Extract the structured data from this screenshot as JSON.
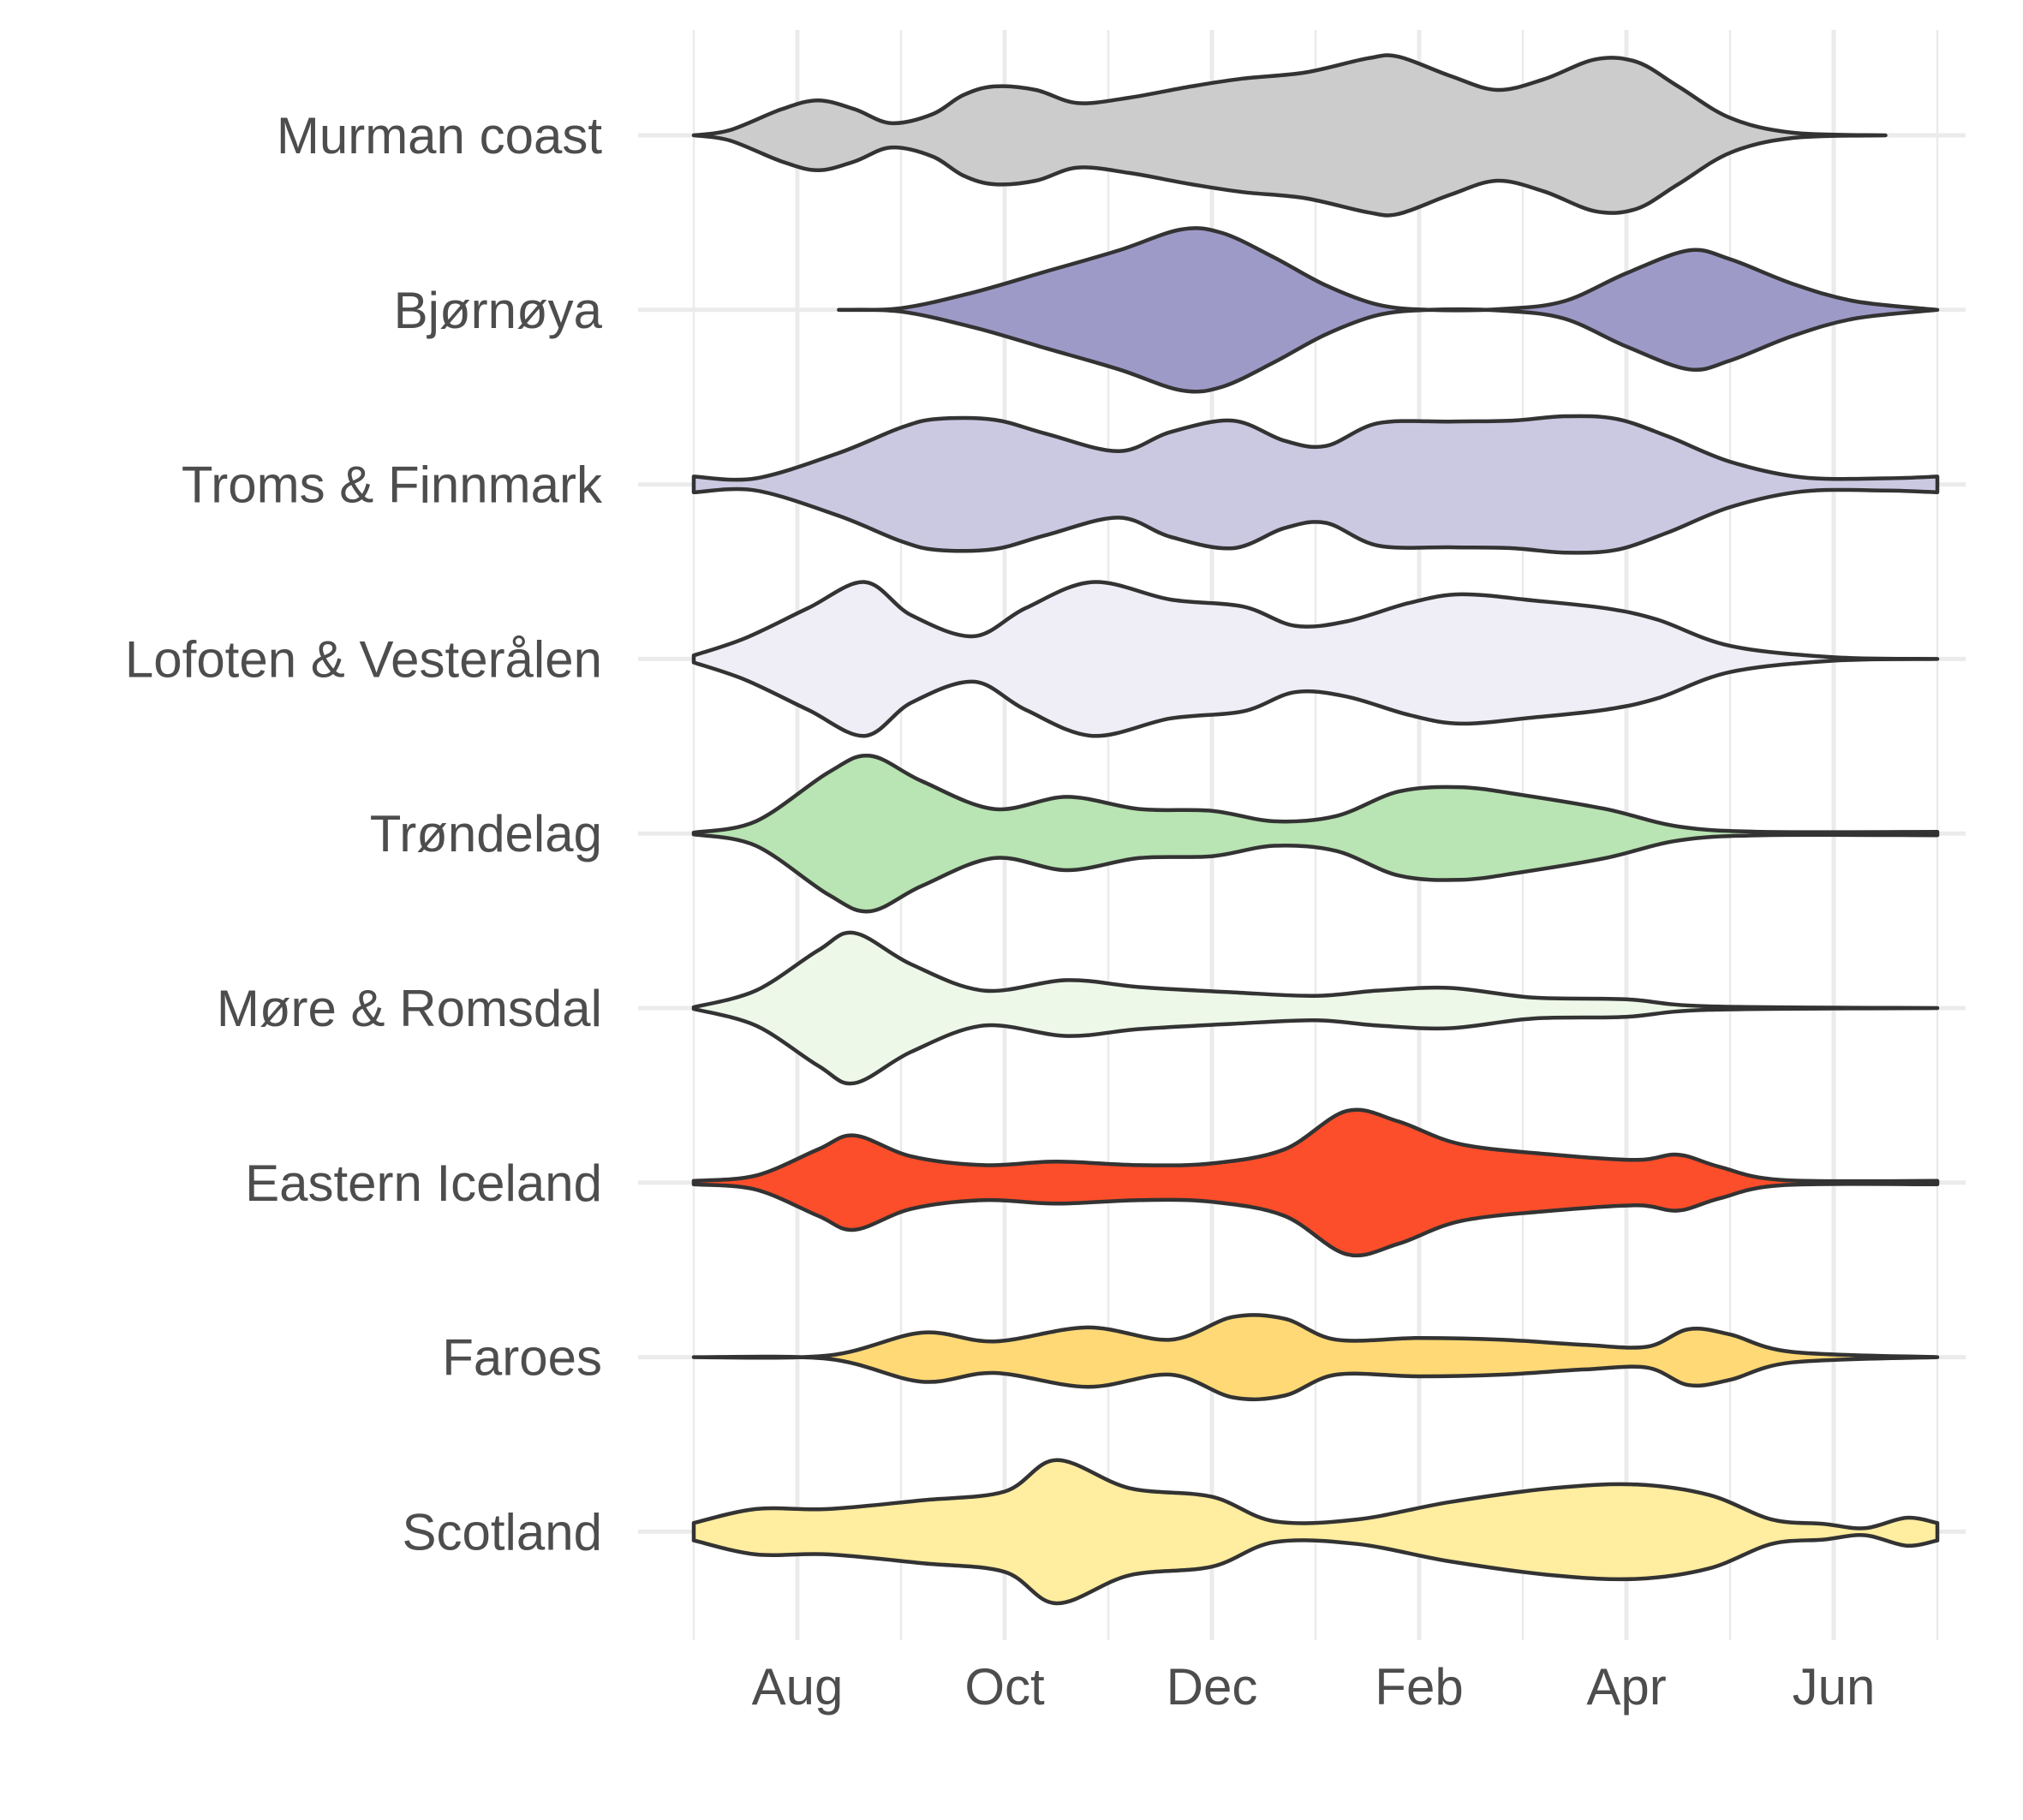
{
  "chart_data": {
    "type": "violin",
    "title": "",
    "xlabel": "",
    "ylabel": "",
    "x_ticks": [
      "Aug",
      "Oct",
      "Dec",
      "Feb",
      "Apr",
      "Jun"
    ],
    "x_tick_months": [
      1,
      3,
      5,
      7,
      9,
      11
    ],
    "x_range_months": [
      0,
      12
    ],
    "grid": true,
    "legend": "none",
    "series": [
      {
        "name": "Murman coast",
        "color": "#cccccc",
        "x_start": 0.0,
        "x_end": 11.5,
        "profile": [
          [
            0.0,
            0.0
          ],
          [
            0.35,
            0.06
          ],
          [
            0.85,
            0.3
          ],
          [
            1.2,
            0.4
          ],
          [
            1.55,
            0.3
          ],
          [
            1.9,
            0.14
          ],
          [
            2.3,
            0.24
          ],
          [
            2.6,
            0.46
          ],
          [
            2.9,
            0.56
          ],
          [
            3.3,
            0.52
          ],
          [
            3.7,
            0.37
          ],
          [
            4.2,
            0.43
          ],
          [
            4.8,
            0.56
          ],
          [
            5.3,
            0.65
          ],
          [
            5.9,
            0.72
          ],
          [
            6.5,
            0.88
          ],
          [
            6.8,
            0.9
          ],
          [
            7.3,
            0.68
          ],
          [
            7.75,
            0.52
          ],
          [
            8.2,
            0.64
          ],
          [
            8.7,
            0.87
          ],
          [
            9.1,
            0.84
          ],
          [
            9.5,
            0.56
          ],
          [
            10.0,
            0.2
          ],
          [
            10.6,
            0.03
          ],
          [
            11.5,
            0.0
          ]
        ]
      },
      {
        "name": "Bjørnøya",
        "color": "#9e9ac8",
        "x_start": 1.4,
        "x_end": 12.0,
        "profile": [
          [
            1.4,
            0.0
          ],
          [
            2.0,
            0.02
          ],
          [
            2.7,
            0.2
          ],
          [
            3.4,
            0.44
          ],
          [
            4.1,
            0.68
          ],
          [
            4.7,
            0.92
          ],
          [
            5.1,
            0.88
          ],
          [
            5.6,
            0.6
          ],
          [
            6.1,
            0.28
          ],
          [
            6.6,
            0.06
          ],
          [
            7.1,
            0.0
          ],
          [
            7.8,
            0.01
          ],
          [
            8.4,
            0.1
          ],
          [
            9.0,
            0.42
          ],
          [
            9.6,
            0.68
          ],
          [
            10.0,
            0.58
          ],
          [
            10.6,
            0.3
          ],
          [
            11.2,
            0.1
          ],
          [
            12.0,
            0.0
          ]
        ]
      },
      {
        "name": "Troms & Finnmark",
        "color": "#cbc9e2",
        "x_start": 0.0,
        "x_end": 12.0,
        "profile": [
          [
            0.0,
            0.09
          ],
          [
            0.6,
            0.07
          ],
          [
            1.4,
            0.36
          ],
          [
            2.0,
            0.65
          ],
          [
            2.35,
            0.75
          ],
          [
            2.9,
            0.74
          ],
          [
            3.4,
            0.58
          ],
          [
            4.1,
            0.38
          ],
          [
            4.6,
            0.6
          ],
          [
            5.2,
            0.73
          ],
          [
            5.7,
            0.5
          ],
          [
            6.1,
            0.44
          ],
          [
            6.6,
            0.7
          ],
          [
            7.3,
            0.72
          ],
          [
            7.9,
            0.73
          ],
          [
            8.4,
            0.78
          ],
          [
            8.9,
            0.75
          ],
          [
            9.4,
            0.55
          ],
          [
            10.0,
            0.26
          ],
          [
            10.7,
            0.08
          ],
          [
            11.5,
            0.07
          ],
          [
            12.0,
            0.09
          ]
        ]
      },
      {
        "name": "Lofoten & Vesterålen",
        "color": "#efedf5",
        "x_start": 0.0,
        "x_end": 12.0,
        "profile": [
          [
            0.0,
            0.04
          ],
          [
            0.5,
            0.24
          ],
          [
            1.1,
            0.58
          ],
          [
            1.65,
            0.88
          ],
          [
            2.1,
            0.5
          ],
          [
            2.7,
            0.26
          ],
          [
            3.2,
            0.58
          ],
          [
            3.85,
            0.88
          ],
          [
            4.6,
            0.68
          ],
          [
            5.3,
            0.6
          ],
          [
            5.8,
            0.38
          ],
          [
            6.3,
            0.43
          ],
          [
            6.9,
            0.64
          ],
          [
            7.4,
            0.74
          ],
          [
            8.1,
            0.67
          ],
          [
            8.8,
            0.58
          ],
          [
            9.3,
            0.45
          ],
          [
            10.0,
            0.15
          ],
          [
            11.0,
            0.02
          ],
          [
            12.0,
            0.0
          ]
        ]
      },
      {
        "name": "Trøndelag",
        "color": "#b9e4b3",
        "x_start": 0.0,
        "x_end": 12.0,
        "profile": [
          [
            0.0,
            0.01
          ],
          [
            0.6,
            0.14
          ],
          [
            1.3,
            0.7
          ],
          [
            1.7,
            0.89
          ],
          [
            2.2,
            0.6
          ],
          [
            2.9,
            0.28
          ],
          [
            3.6,
            0.42
          ],
          [
            4.3,
            0.28
          ],
          [
            5.0,
            0.26
          ],
          [
            5.6,
            0.14
          ],
          [
            6.2,
            0.2
          ],
          [
            6.8,
            0.48
          ],
          [
            7.4,
            0.53
          ],
          [
            8.0,
            0.44
          ],
          [
            8.8,
            0.28
          ],
          [
            9.5,
            0.08
          ],
          [
            10.3,
            0.02
          ],
          [
            12.0,
            0.02
          ]
        ]
      },
      {
        "name": "Møre & Romsdal",
        "color": "#edf8e9",
        "x_start": 0.0,
        "x_end": 12.0,
        "profile": [
          [
            0.0,
            0.01
          ],
          [
            0.6,
            0.2
          ],
          [
            1.2,
            0.66
          ],
          [
            1.55,
            0.86
          ],
          [
            2.1,
            0.5
          ],
          [
            2.8,
            0.2
          ],
          [
            3.6,
            0.32
          ],
          [
            4.3,
            0.24
          ],
          [
            5.2,
            0.18
          ],
          [
            6.0,
            0.14
          ],
          [
            6.6,
            0.2
          ],
          [
            7.3,
            0.23
          ],
          [
            8.1,
            0.12
          ],
          [
            9.0,
            0.1
          ],
          [
            9.8,
            0.02
          ],
          [
            12.0,
            0.0
          ]
        ]
      },
      {
        "name": "Eastern Iceland",
        "color": "#fc4e2a",
        "x_start": 0.0,
        "x_end": 12.0,
        "profile": [
          [
            0.0,
            0.02
          ],
          [
            0.6,
            0.08
          ],
          [
            1.2,
            0.38
          ],
          [
            1.55,
            0.54
          ],
          [
            2.1,
            0.3
          ],
          [
            2.8,
            0.2
          ],
          [
            3.5,
            0.24
          ],
          [
            4.3,
            0.2
          ],
          [
            5.0,
            0.22
          ],
          [
            5.7,
            0.38
          ],
          [
            6.3,
            0.82
          ],
          [
            6.8,
            0.7
          ],
          [
            7.4,
            0.44
          ],
          [
            8.3,
            0.32
          ],
          [
            9.1,
            0.26
          ],
          [
            9.5,
            0.32
          ],
          [
            9.9,
            0.18
          ],
          [
            10.5,
            0.03
          ],
          [
            12.0,
            0.02
          ]
        ]
      },
      {
        "name": "Faroes",
        "color": "#fed976",
        "x_start": 0.0,
        "x_end": 12.0,
        "profile": [
          [
            0.0,
            0.0
          ],
          [
            1.3,
            0.02
          ],
          [
            2.2,
            0.28
          ],
          [
            2.9,
            0.18
          ],
          [
            3.8,
            0.34
          ],
          [
            4.6,
            0.2
          ],
          [
            5.2,
            0.46
          ],
          [
            5.7,
            0.44
          ],
          [
            6.2,
            0.2
          ],
          [
            7.0,
            0.22
          ],
          [
            7.8,
            0.2
          ],
          [
            8.6,
            0.14
          ],
          [
            9.2,
            0.12
          ],
          [
            9.6,
            0.32
          ],
          [
            10.0,
            0.26
          ],
          [
            10.6,
            0.06
          ],
          [
            12.0,
            0.0
          ]
        ]
      },
      {
        "name": "Scotland",
        "color": "#ffeda0",
        "x_start": 0.0,
        "x_end": 12.0,
        "profile": [
          [
            0.0,
            0.1
          ],
          [
            0.6,
            0.26
          ],
          [
            1.3,
            0.26
          ],
          [
            2.2,
            0.36
          ],
          [
            3.0,
            0.46
          ],
          [
            3.5,
            0.82
          ],
          [
            4.2,
            0.5
          ],
          [
            5.0,
            0.4
          ],
          [
            5.6,
            0.12
          ],
          [
            6.4,
            0.14
          ],
          [
            7.3,
            0.34
          ],
          [
            8.3,
            0.5
          ],
          [
            9.1,
            0.54
          ],
          [
            9.8,
            0.42
          ],
          [
            10.4,
            0.14
          ],
          [
            10.9,
            0.09
          ],
          [
            11.3,
            0.04
          ],
          [
            11.7,
            0.16
          ],
          [
            12.0,
            0.1
          ]
        ]
      }
    ]
  }
}
